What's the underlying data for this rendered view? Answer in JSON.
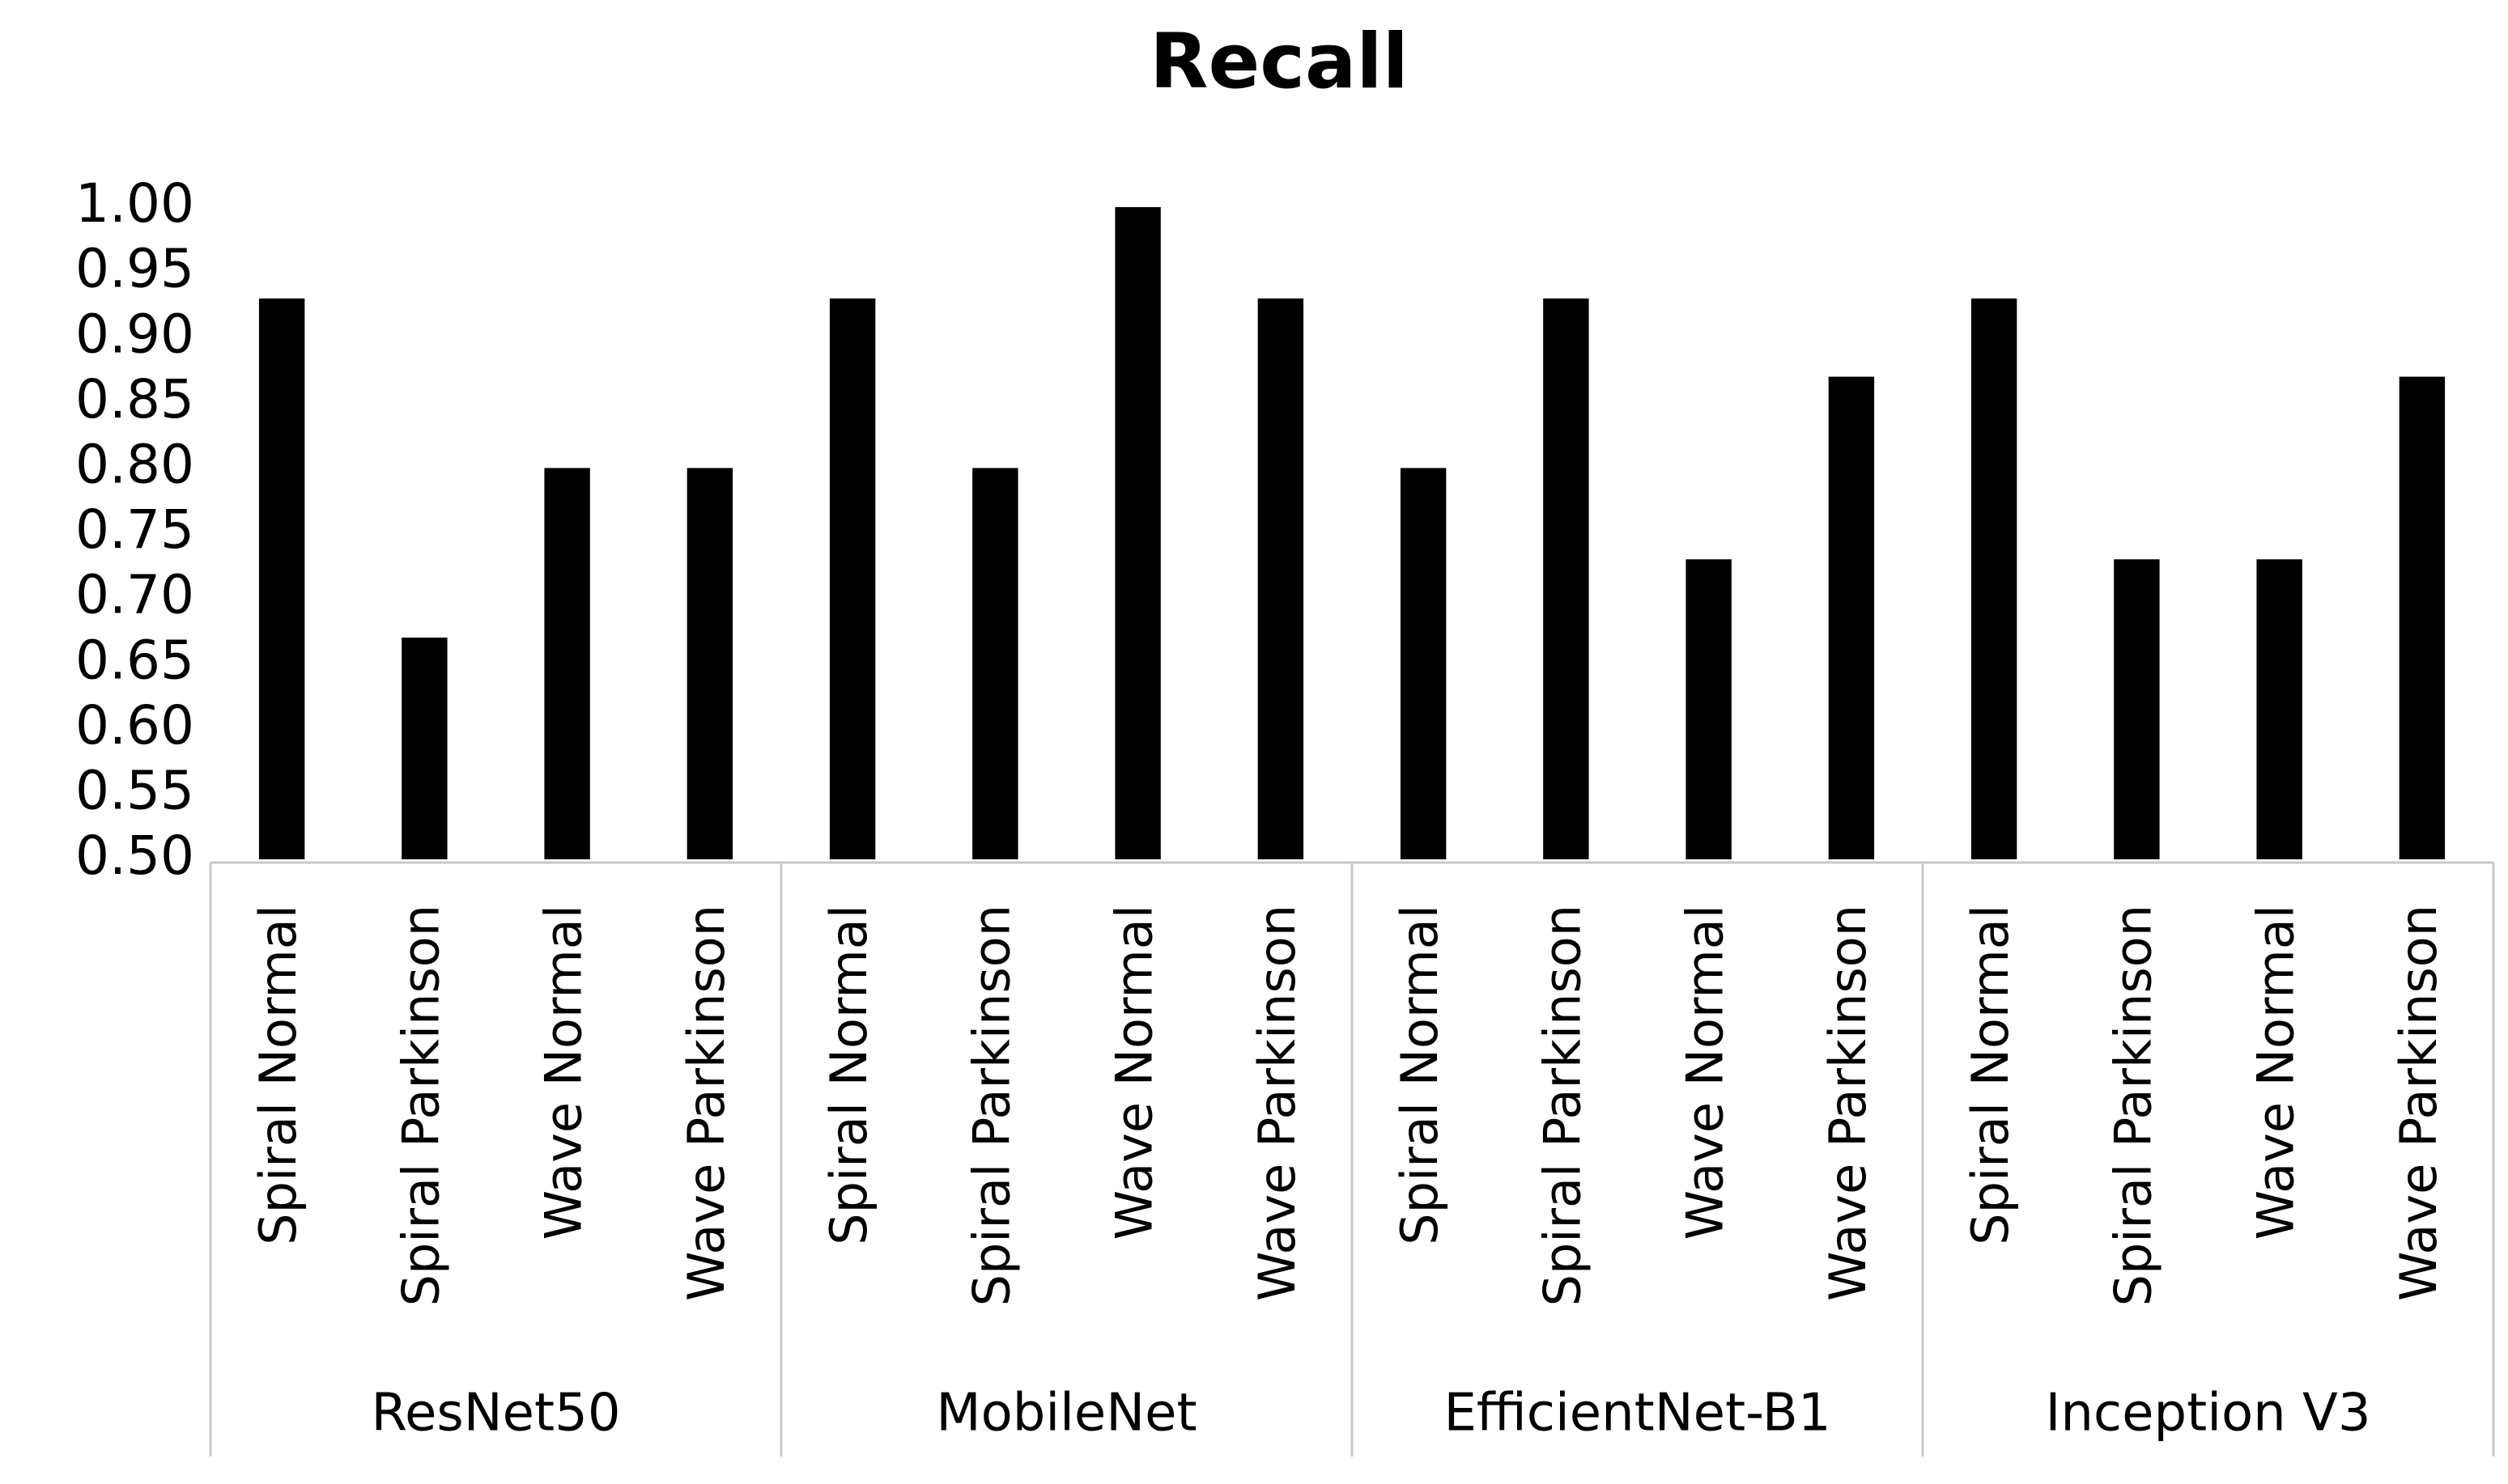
{
  "chart_data": {
    "type": "bar",
    "title": "Recall",
    "categories": [
      "Spiral Normal",
      "Spiral Parkinson",
      "Wave Normal",
      "Wave Parkinson",
      "Spiral Normal",
      "Spiral Parkinson",
      "Wave Normal",
      "Wave Parkinson",
      "Spiral Normal",
      "Spiral Parkinson",
      "Wave Normal",
      "Wave Parkinson",
      "Spiral Normal",
      "Spiral Parkinson",
      "Wave Normal",
      "Wave Parkinson"
    ],
    "groups": [
      "ResNet50",
      "MobileNet",
      "EfficientNet-B1",
      "Inception V3"
    ],
    "values": [
      0.93,
      0.67,
      0.8,
      0.8,
      0.93,
      0.8,
      1.0,
      0.93,
      0.8,
      0.93,
      0.73,
      0.87,
      0.93,
      0.73,
      0.73,
      0.87
    ],
    "color": "#000000",
    "ylim": [
      0.5,
      1.0
    ],
    "yticks": [
      {
        "value": 0.5,
        "label": "0.50"
      },
      0.55,
      {
        "value": 0.6,
        "label": "0.60"
      },
      0.65,
      {
        "value": 0.7,
        "label": "0.70"
      },
      0.75,
      {
        "value": 0.8,
        "label": "0.80"
      },
      0.85,
      {
        "value": 0.9,
        "label": "0.90"
      },
      0.95,
      {
        "value": 1.0,
        "label": "1.00"
      }
    ],
    "grid": false
  }
}
